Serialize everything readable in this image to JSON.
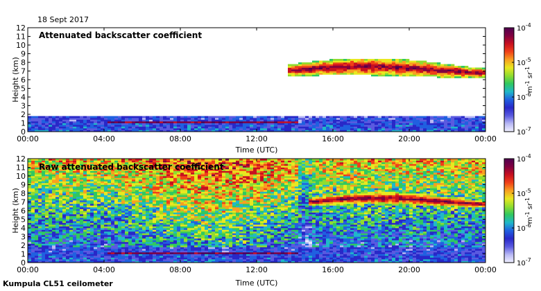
{
  "date_label": "18 Sept 2017",
  "footer_label": "Kumpula CL51 ceilometer",
  "colormap": [
    "#f0f0ff",
    "#b8b8f4",
    "#5a5ae0",
    "#2828c8",
    "#2060e0",
    "#20b8c8",
    "#30c860",
    "#90dc30",
    "#e8e820",
    "#f8a020",
    "#f04018",
    "#c81020",
    "#800040",
    "#500050"
  ],
  "chart_data": [
    {
      "type": "heatmap",
      "title": "Attenuated backscatter coefficient",
      "xlabel": "Time (UTC)",
      "ylabel": "Height (km)",
      "x_ticks": [
        "00:00",
        "04:00",
        "08:00",
        "12:00",
        "16:00",
        "20:00",
        "00:00"
      ],
      "y_ticks": [
        "0",
        "1",
        "2",
        "3",
        "4",
        "5",
        "6",
        "7",
        "8",
        "9",
        "10",
        "11",
        "12"
      ],
      "xlim_hours": [
        0,
        24
      ],
      "ylim_km": [
        0,
        12
      ],
      "colorbar": {
        "label": "m",
        "label_sup": "-1",
        "label_mid": " sr",
        "label_sup2": "-1",
        "scale": "log",
        "range": [
          1e-07,
          0.0001
        ],
        "ticks": [
          {
            "base": "10",
            "exp": "-4"
          },
          {
            "base": "10",
            "exp": "-5"
          },
          {
            "base": "10",
            "exp": "-6"
          },
          {
            "base": "10",
            "exp": "-7"
          }
        ]
      },
      "features": {
        "boundary_layer_top_km": 1.8,
        "low_cloud": {
          "start_h": 4.2,
          "end_h": 14.2,
          "height_km": 1.1
        },
        "high_cloud": {
          "start_h": 13.7,
          "end_h": 24,
          "base_km": 6.3,
          "top_km": 8.3
        },
        "noise_masked": true
      }
    },
    {
      "type": "heatmap",
      "title": "Raw attenuated backscatter coefficient",
      "xlabel": "Time (UTC)",
      "ylabel": "Height (km)",
      "x_ticks": [
        "00:00",
        "04:00",
        "08:00",
        "12:00",
        "16:00",
        "20:00",
        "00:00"
      ],
      "y_ticks": [
        "0",
        "1",
        "2",
        "3",
        "4",
        "5",
        "6",
        "7",
        "8",
        "9",
        "10",
        "11",
        "12"
      ],
      "xlim_hours": [
        0,
        24
      ],
      "ylim_km": [
        0,
        12
      ],
      "colorbar": {
        "label": "m",
        "label_sup": "-1",
        "label_mid": " sr",
        "label_sup2": "-1",
        "scale": "log",
        "range": [
          1e-07,
          0.0001
        ],
        "ticks": [
          {
            "base": "10",
            "exp": "-4"
          },
          {
            "base": "10",
            "exp": "-5"
          },
          {
            "base": "10",
            "exp": "-6"
          },
          {
            "base": "10",
            "exp": "-7"
          }
        ]
      },
      "features": {
        "boundary_layer_top_km": 1.8,
        "low_cloud": {
          "start_h": 4.2,
          "end_h": 14.2,
          "height_km": 1.1
        },
        "high_cloud": {
          "start_h": 14.8,
          "end_h": 24,
          "base_km": 6.5,
          "top_km": 8.0
        },
        "noise_masked": false
      }
    }
  ]
}
